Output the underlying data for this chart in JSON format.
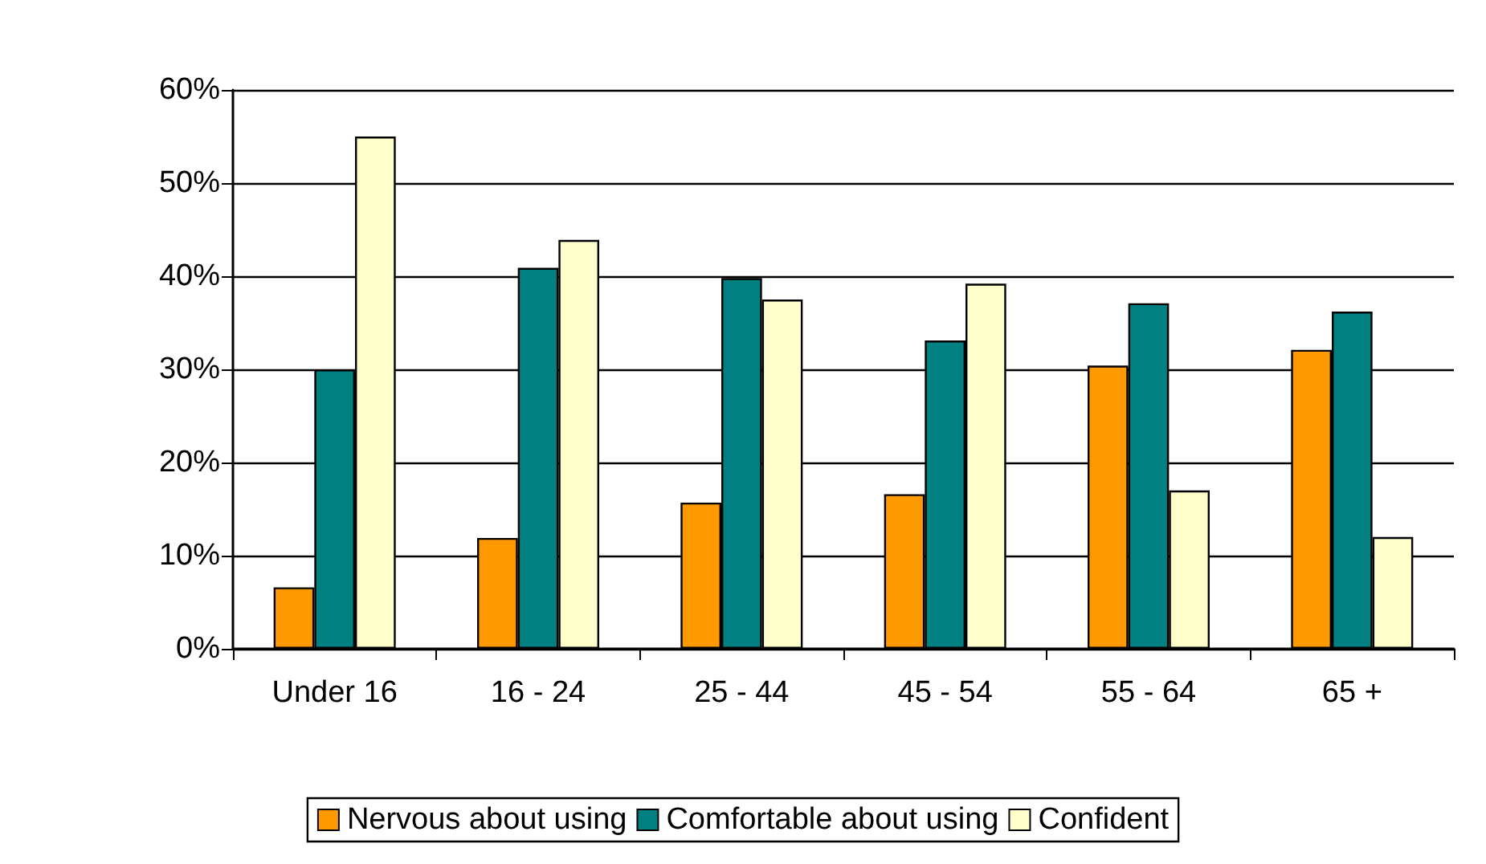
{
  "chart_data": {
    "type": "bar",
    "categories": [
      "Under 16",
      "16 - 24",
      "25 - 44",
      "45 - 54",
      "55 - 64",
      "65 +"
    ],
    "series": [
      {
        "name": "Nervous about using",
        "color": "#ff9900",
        "values": [
          6.6,
          11.9,
          15.7,
          16.6,
          30.4,
          32.1
        ]
      },
      {
        "name": "Comfortable about using",
        "color": "#008080",
        "values": [
          30,
          40.9,
          39.8,
          33.1,
          37.1,
          36.2
        ]
      },
      {
        "name": "Confident",
        "color": "#ffffcc",
        "values": [
          55,
          43.9,
          37.5,
          39.2,
          17,
          12
        ]
      }
    ],
    "ylim": [
      0,
      60
    ],
    "yticks": [
      {
        "value": 0,
        "label": "0%"
      },
      {
        "value": 10,
        "label": "10%"
      },
      {
        "value": 20,
        "label": "20%"
      },
      {
        "value": 30,
        "label": "30%"
      },
      {
        "value": 40,
        "label": "40%"
      },
      {
        "value": 50,
        "label": "50%"
      },
      {
        "value": 60,
        "label": "60%"
      }
    ],
    "grid": "y",
    "legend": "bottom"
  }
}
